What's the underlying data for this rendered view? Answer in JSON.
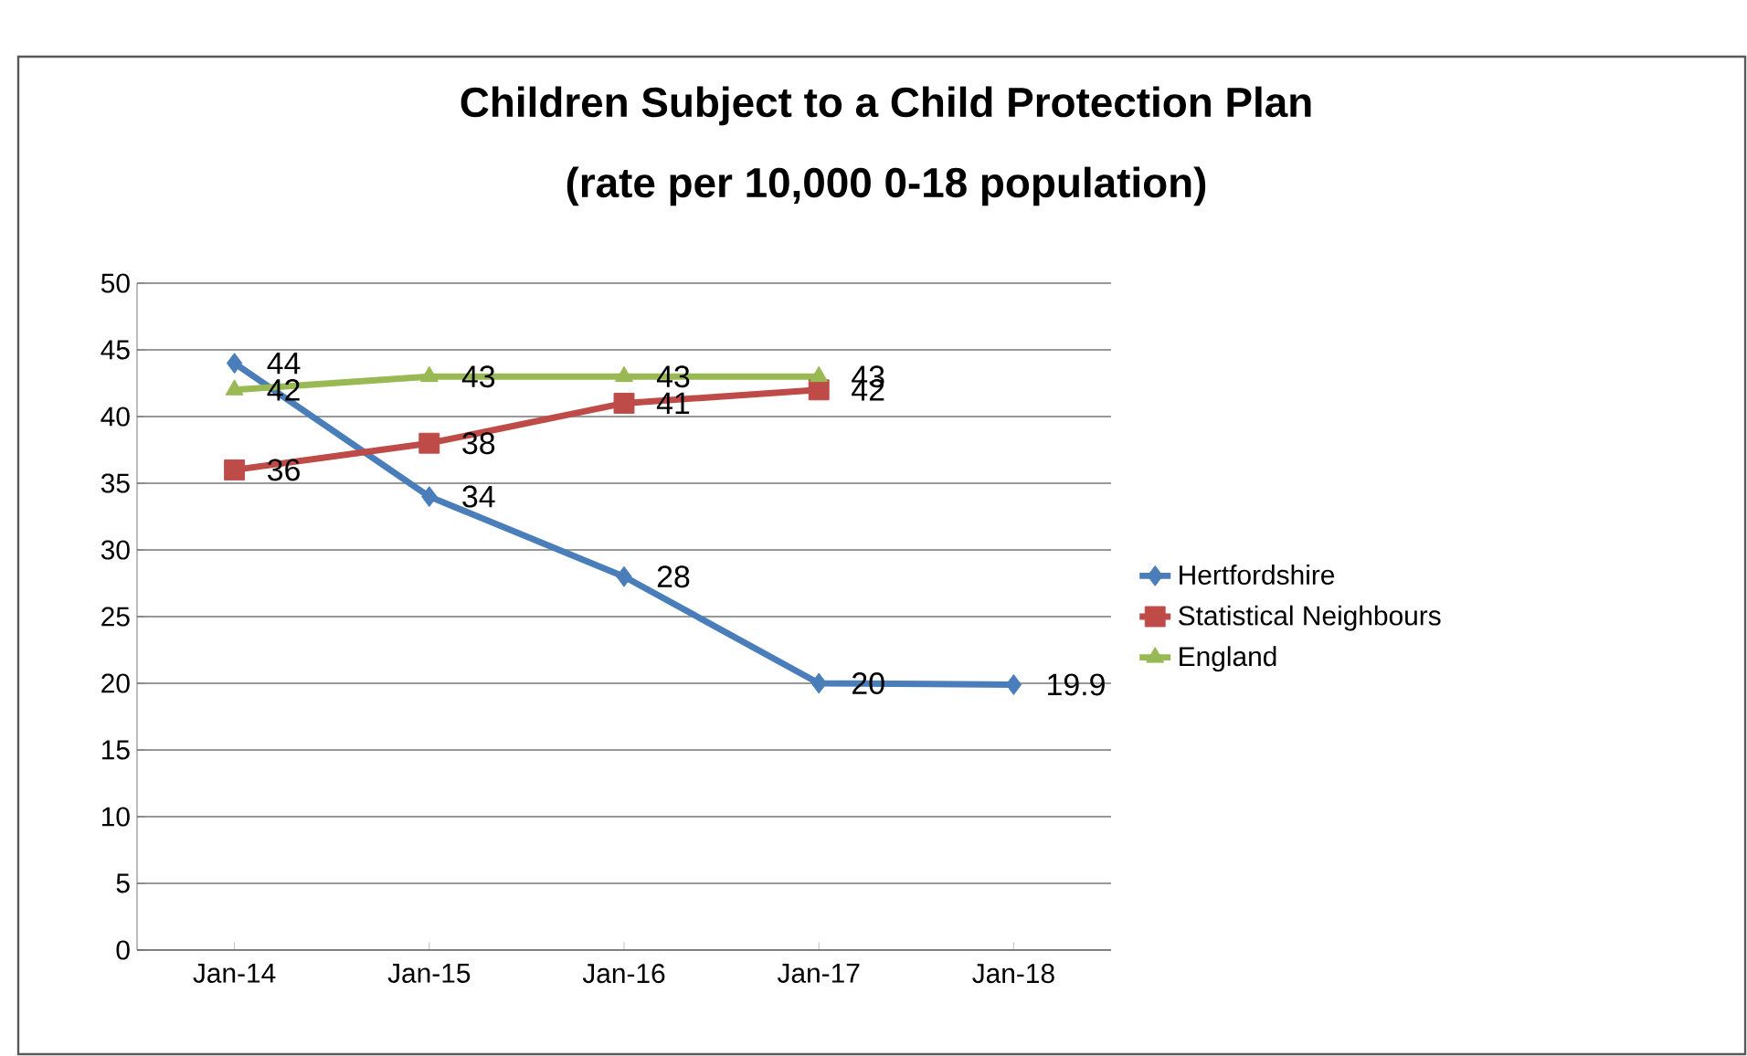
{
  "chart_data": {
    "type": "line",
    "title": "Children Subject to a Child Protection Plan",
    "subtitle": "(rate per 10,000 0-18 population)",
    "categories": [
      "Jan-14",
      "Jan-15",
      "Jan-16",
      "Jan-17",
      "Jan-18"
    ],
    "series": [
      {
        "name": "Hertfordshire",
        "color": "#4a7ebb",
        "marker": "diamond",
        "values": [
          44,
          34,
          28,
          20,
          19.9
        ]
      },
      {
        "name": "Statistical Neighbours",
        "color": "#be4b48",
        "marker": "square",
        "values": [
          36,
          38,
          41,
          42,
          null
        ]
      },
      {
        "name": "England",
        "color": "#98b954",
        "marker": "triangle",
        "values": [
          42,
          43,
          43,
          43,
          null
        ]
      }
    ],
    "ylim": [
      0,
      50
    ],
    "yticks": [
      0,
      5,
      10,
      15,
      20,
      25,
      30,
      35,
      40,
      45,
      50
    ],
    "grid": "y",
    "legend": "right",
    "data_labels": true,
    "line_style": "solid"
  }
}
